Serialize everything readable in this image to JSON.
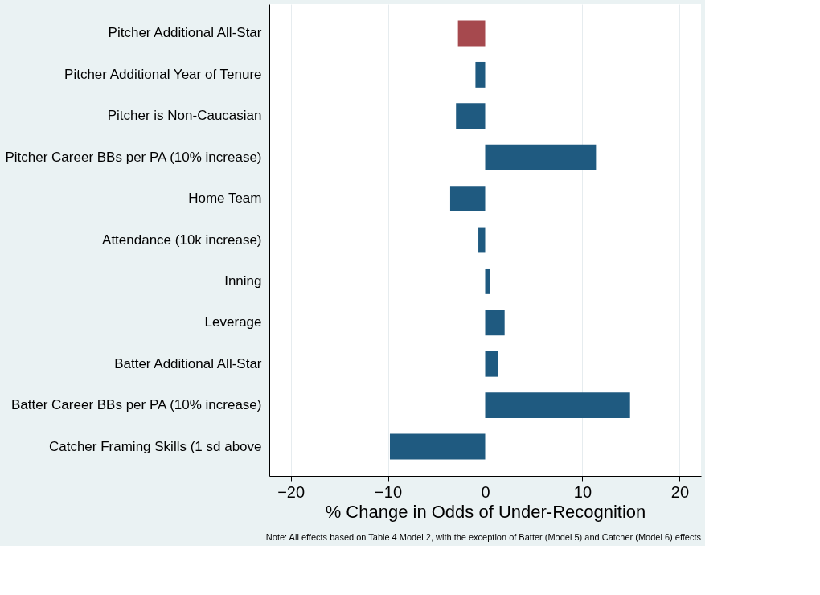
{
  "chart_data": {
    "type": "bar",
    "orientation": "horizontal",
    "xlabel": "% Change in Odds of Under-Recognition",
    "categories": [
      "Pitcher Additional All-Star",
      "Pitcher Additional Year of Tenure",
      "Pitcher is Non-Caucasian",
      "Pitcher Career BBs per PA (10% increase)",
      "Home Team",
      "Attendance (10k increase)",
      "Inning",
      "Leverage",
      "Batter Additional All-Star",
      "Batter Career BBs per PA (10% increase)",
      "Catcher Framing Skills (1 sd above"
    ],
    "values": [
      -2.8,
      -1.0,
      -3.0,
      11.4,
      -3.6,
      -0.7,
      0.5,
      2.0,
      1.3,
      14.9,
      -9.8
    ],
    "colors": [
      "#a6494e",
      "#1f5a80",
      "#1f5a80",
      "#1f5a80",
      "#1f5a80",
      "#1f5a80",
      "#1f5a80",
      "#1f5a80",
      "#1f5a80",
      "#1f5a80",
      "#1f5a80"
    ],
    "xlim": [
      -22.2,
      22.2
    ],
    "xticks": [
      -20,
      -10,
      0,
      10,
      20
    ],
    "grid": "x",
    "annotations": [
      "Note: All effects based on Table 4 Model 2, with the exception of Batter (Model 5) and Catcher (Model 6) effects"
    ]
  }
}
